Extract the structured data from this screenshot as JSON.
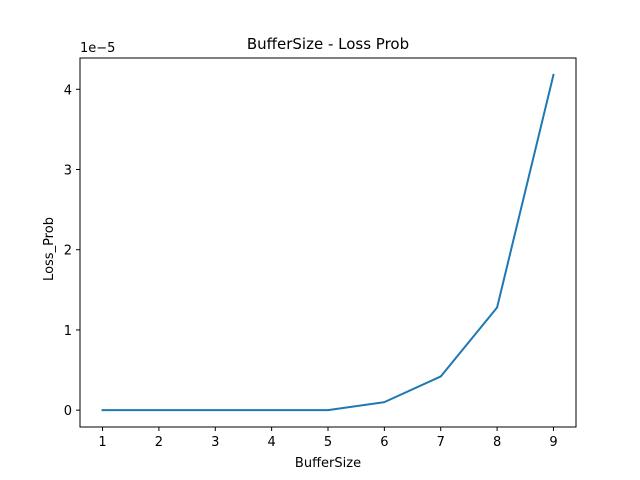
{
  "chart_data": {
    "type": "line",
    "title": "BufferSize - Loss Prob",
    "xlabel": "BufferSize",
    "ylabel": "Loss_Prob",
    "y_offset_label": "1e−5",
    "x": [
      1,
      2,
      3,
      4,
      5,
      6,
      7,
      8,
      9
    ],
    "series": [
      {
        "values": [
          0,
          0,
          0,
          0,
          0,
          1e-06,
          4.2e-06,
          1.28e-05,
          4.18e-05
        ],
        "color": "#1f77b4"
      }
    ],
    "xlim": [
      0.6,
      9.4
    ],
    "ylim": [
      -2.1e-06,
      4.39e-05
    ],
    "x_ticks": [
      1,
      2,
      3,
      4,
      5,
      6,
      7,
      8,
      9
    ],
    "x_tick_labels": [
      "1",
      "2",
      "3",
      "4",
      "5",
      "6",
      "7",
      "8",
      "9"
    ],
    "y_ticks": [
      0,
      1e-05,
      2e-05,
      3e-05,
      4e-05
    ],
    "y_tick_labels": [
      "0",
      "1",
      "2",
      "3",
      "4"
    ],
    "grid": false,
    "legend": "none"
  }
}
